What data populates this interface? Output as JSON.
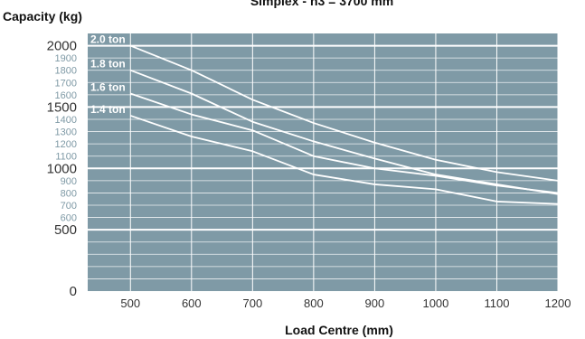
{
  "chart_data": {
    "type": "line",
    "title": "Simplex - h3 = 3700 mm",
    "xlabel": "Load Centre (mm)",
    "ylabel": "Capacity (kg)",
    "xlim": [
      430,
      1200
    ],
    "ylim": [
      0,
      2100
    ],
    "x_ticks": [
      "500",
      "600",
      "700",
      "800",
      "900",
      "1000",
      "1100",
      "1200"
    ],
    "y_ticks_major": [
      "0",
      "500",
      "1000",
      "1500",
      "2000"
    ],
    "y_ticks_minor": [
      "600",
      "700",
      "800",
      "900",
      "1100",
      "1200",
      "1300",
      "1400",
      "1600",
      "1700",
      "1800",
      "1900"
    ],
    "grid": true,
    "background_color": "#7f9aa6",
    "line_color": "#ffffff",
    "series": [
      {
        "name": "2.0 ton",
        "x": [
          500,
          600,
          700,
          800,
          900,
          1000,
          1100,
          1200
        ],
        "values": [
          2000,
          1800,
          1560,
          1370,
          1210,
          1070,
          970,
          900
        ]
      },
      {
        "name": "1.8 ton",
        "x": [
          500,
          600,
          700,
          800,
          900,
          1000,
          1100,
          1200
        ],
        "values": [
          1800,
          1610,
          1380,
          1220,
          1080,
          950,
          870,
          790
        ]
      },
      {
        "name": "1.6 ton",
        "x": [
          500,
          600,
          700,
          800,
          900,
          1000,
          1100,
          1200
        ],
        "values": [
          1610,
          1440,
          1310,
          1100,
          1000,
          940,
          860,
          800
        ]
      },
      {
        "name": "1.4 ton",
        "x": [
          500,
          600,
          700,
          800,
          900,
          1000,
          1100,
          1200
        ],
        "values": [
          1430,
          1260,
          1140,
          950,
          870,
          830,
          730,
          710
        ]
      }
    ]
  }
}
